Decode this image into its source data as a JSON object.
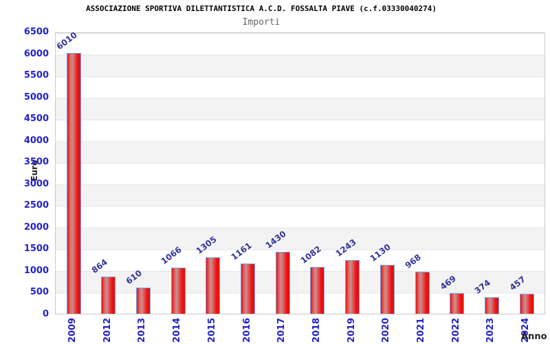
{
  "title": "ASSOCIAZIONE SPORTIVA DILETTANTISTICA A.C.D. FOSSALTA PIAVE (c.f.03330040274)",
  "subtitle": "Importi",
  "chart_data": {
    "type": "bar",
    "title": "ASSOCIAZIONE SPORTIVA DILETTANTISTICA A.C.D. FOSSALTA PIAVE (c.f.03330040274)",
    "subtitle": "Importi",
    "xlabel": "Anno",
    "ylabel": "Euro",
    "categories": [
      "2009",
      "2012",
      "2013",
      "2014",
      "2015",
      "2016",
      "2017",
      "2018",
      "2019",
      "2020",
      "2021",
      "2022",
      "2023",
      "2024"
    ],
    "values": [
      6010,
      864,
      610,
      1066,
      1305,
      1161,
      1430,
      1082,
      1243,
      1130,
      968,
      469,
      374,
      457
    ],
    "ylim": [
      0,
      6500
    ],
    "ytick_step": 500,
    "grid": "horizontal-bands-alternating",
    "legend": "none",
    "colors": {
      "bar_fill_edge": "#e01313",
      "bar_fill_highlight": "#c79292",
      "bar_border": "#74a4e8",
      "tick_label": "#2222cc",
      "value_label": "#333399",
      "band_gray": "#f3f3f3",
      "gridline": "#e4e4e4",
      "plot_border": "#c9c9c9",
      "title": "#000000",
      "subtitle": "#666666",
      "axis_title": "#222222",
      "background": "#ffffff"
    }
  }
}
